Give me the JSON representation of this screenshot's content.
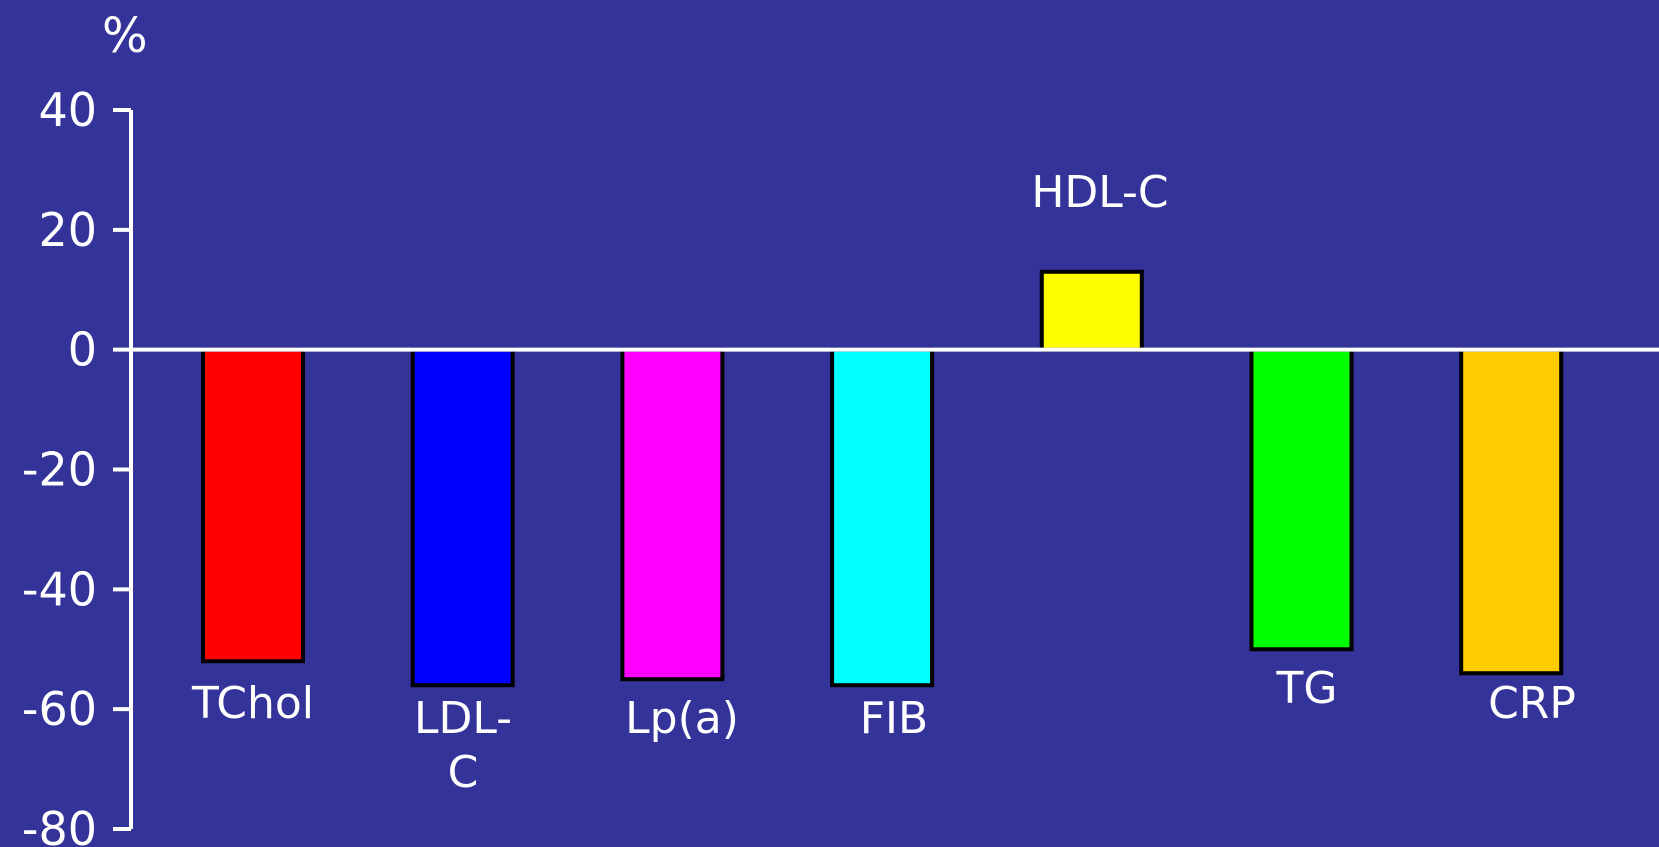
{
  "chart_data": {
    "type": "bar",
    "ylabel": "%",
    "ylim": [
      -80,
      40
    ],
    "yticks": [
      40,
      20,
      0,
      -20,
      -40,
      -60,
      -80
    ],
    "categories": [
      "TChol",
      "LDL-C",
      "Lp(a)",
      "FIB",
      "HDL-C",
      "TG",
      "CRP"
    ],
    "category_label_lines": [
      [
        "TChol"
      ],
      [
        "LDL-",
        "C"
      ],
      [
        "Lp(a)"
      ],
      [
        "FIB"
      ],
      [
        "HDL-C"
      ],
      [
        "TG"
      ],
      [
        "CRP"
      ]
    ],
    "values": [
      -52,
      -56,
      -55,
      -56,
      13,
      -50,
      -54
    ],
    "bar_colors": [
      "#ff0000",
      "#0000ff",
      "#ff00ff",
      "#00ffff",
      "#ffff00",
      "#00ff00",
      "#ffcc00"
    ],
    "grid": false,
    "legend": "none"
  },
  "colors": {
    "background": "#333399",
    "axis": "#ffffff",
    "bar_outline": "#000000"
  }
}
